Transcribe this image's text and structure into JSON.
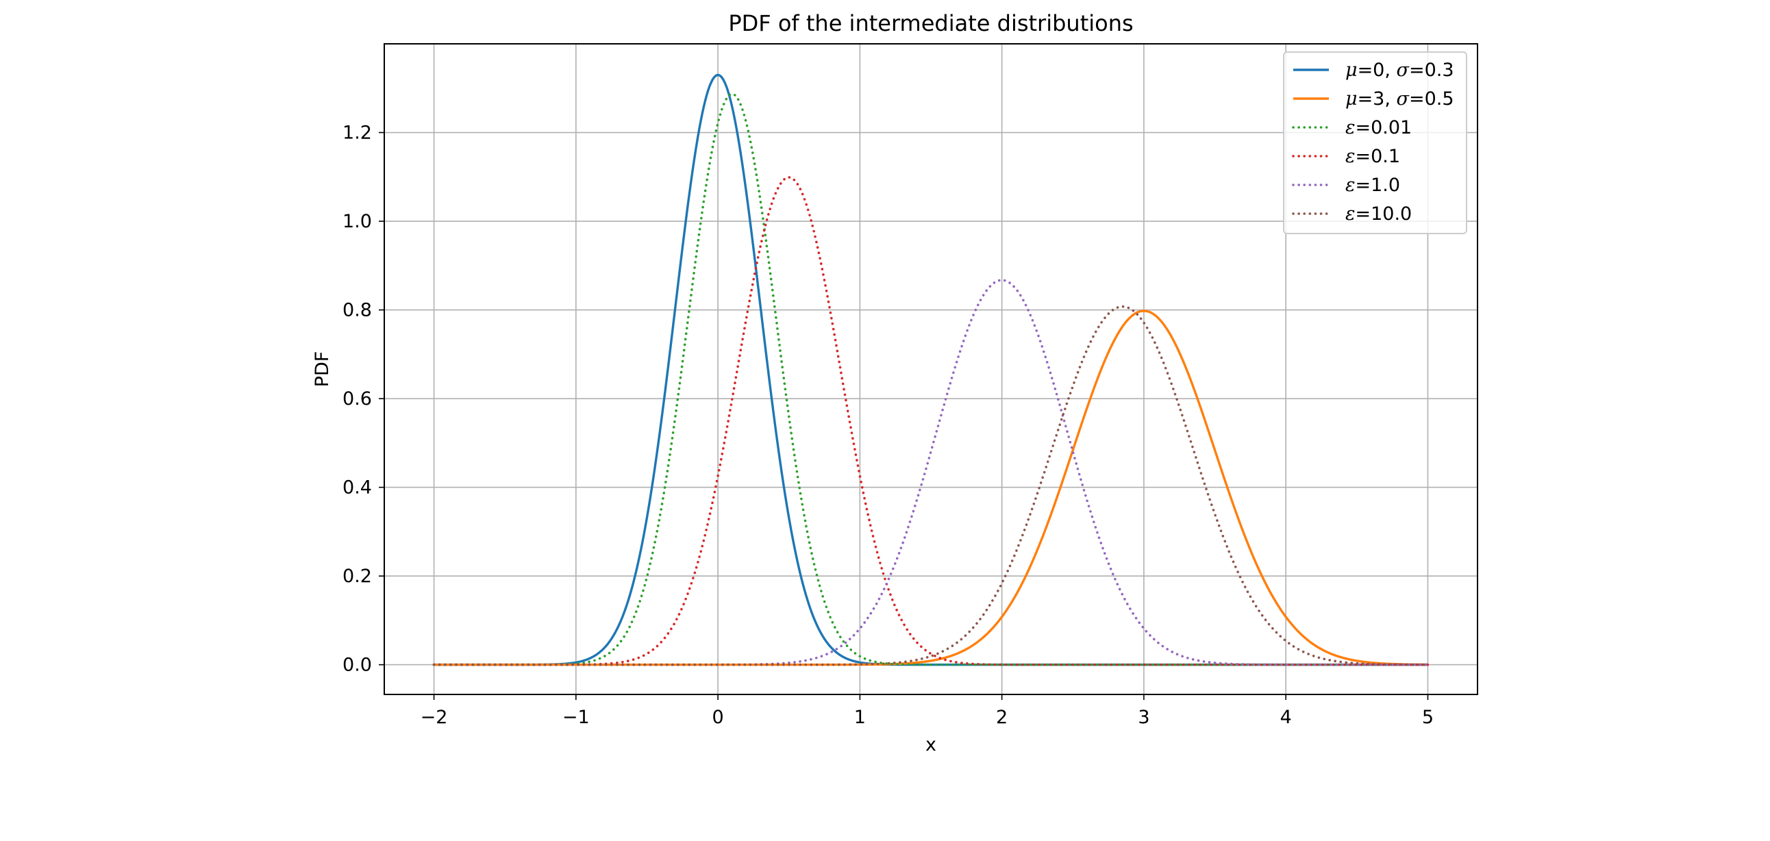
{
  "chart_data": {
    "type": "line",
    "title": "PDF of the intermediate distributions",
    "xlabel": "x",
    "ylabel": "PDF",
    "xlim": [
      -2.35,
      5.35
    ],
    "ylim": [
      -0.067,
      1.4
    ],
    "xticks": [
      "−2",
      "−1",
      "0",
      "1",
      "2",
      "3",
      "4",
      "5"
    ],
    "xtick_values": [
      -2,
      -1,
      0,
      1,
      2,
      3,
      4,
      5
    ],
    "yticks": [
      "0.0",
      "0.2",
      "0.4",
      "0.6",
      "0.8",
      "1.0",
      "1.2"
    ],
    "ytick_values": [
      0,
      0.2,
      0.4,
      0.6,
      0.8,
      1.0,
      1.2
    ],
    "x_range": [
      -2,
      5
    ],
    "grid": true,
    "legend_position": "top-right",
    "series": [
      {
        "name": "μ=0, σ=0.3",
        "symbol": "μ",
        "symbol2": "σ",
        "label_rest1": "=0, ",
        "label_rest2": "=0.3",
        "mu": 0,
        "sigma": 0.3,
        "style": "solid",
        "color": "#1f77b4"
      },
      {
        "name": "μ=3, σ=0.5",
        "symbol": "μ",
        "symbol2": "σ",
        "label_rest1": "=3, ",
        "label_rest2": "=0.5",
        "mu": 3,
        "sigma": 0.5,
        "style": "solid",
        "color": "#ff7f0e"
      },
      {
        "name": "ε=0.01",
        "symbol": "ε",
        "label_rest1": "=0.01",
        "mu": 0.1,
        "sigma": 0.31,
        "style": "dotted",
        "color": "#2ca02c"
      },
      {
        "name": "ε=0.1",
        "symbol": "ε",
        "label_rest1": "=0.1",
        "mu": 0.5,
        "sigma": 0.363,
        "style": "dotted",
        "color": "#d62728"
      },
      {
        "name": "ε=1.0",
        "symbol": "ε",
        "label_rest1": "=1.0",
        "mu": 2.0,
        "sigma": 0.46,
        "style": "dotted",
        "color": "#9467bd"
      },
      {
        "name": "ε=10.0",
        "symbol": "ε",
        "label_rest1": "=10.0",
        "mu": 2.85,
        "sigma": 0.494,
        "style": "dotted",
        "color": "#8c564b"
      }
    ]
  }
}
